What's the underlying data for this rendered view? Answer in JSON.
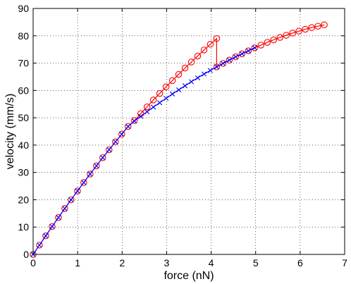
{
  "chart_data": {
    "type": "line",
    "xlabel": "force (nN)",
    "ylabel": "velocity (mm/s)",
    "xlim": [
      0,
      7
    ],
    "ylim": [
      0,
      90
    ],
    "x_ticks": [
      "0",
      "1",
      "2",
      "3",
      "4",
      "5",
      "6",
      "7"
    ],
    "y_ticks": [
      "0",
      "10",
      "20",
      "30",
      "40",
      "50",
      "60",
      "70",
      "80",
      "90"
    ],
    "grid": true,
    "grid_style": "dotted",
    "legend": "none",
    "series": [
      {
        "color": "#0000ff",
        "marker": "x",
        "x": [
          0.0,
          0.142,
          0.284,
          0.427,
          0.569,
          0.711,
          0.853,
          0.996,
          1.138,
          1.28,
          1.422,
          1.564,
          1.707,
          1.849,
          1.991,
          2.133,
          2.276,
          2.418,
          2.56,
          2.702,
          2.844,
          2.987,
          3.129,
          3.271,
          3.413,
          3.556,
          3.698,
          3.84,
          3.982,
          4.124,
          4.267,
          4.409,
          4.551,
          4.693,
          4.836,
          4.978
        ],
        "y": [
          0.0,
          3.4,
          6.8,
          10.2,
          13.5,
          16.8,
          20.0,
          23.2,
          26.3,
          29.4,
          32.4,
          35.4,
          38.3,
          41.2,
          44.0,
          46.8,
          48.8,
          50.5,
          52.2,
          53.9,
          55.5,
          57.1,
          58.7,
          60.2,
          61.7,
          63.2,
          64.6,
          66.0,
          67.3,
          68.6,
          69.9,
          71.1,
          72.3,
          73.4,
          74.5,
          75.6
        ]
      },
      {
        "color": "#ff0000",
        "marker": "o",
        "x": [
          0.0,
          0.142,
          0.284,
          0.427,
          0.569,
          0.711,
          0.853,
          0.996,
          1.138,
          1.28,
          1.422,
          1.564,
          1.707,
          1.849,
          1.991,
          2.133,
          2.276,
          2.418,
          2.56,
          2.702,
          2.844,
          2.987,
          3.129,
          3.271,
          3.413,
          3.556,
          3.698,
          3.84,
          3.982,
          4.124,
          4.124,
          4.267,
          4.409,
          4.551,
          4.693,
          4.836,
          4.978,
          5.12,
          5.262,
          5.404,
          5.547,
          5.689,
          5.831,
          5.973,
          6.116,
          6.258,
          6.4,
          6.542
        ],
        "y": [
          0.0,
          3.4,
          6.8,
          10.2,
          13.5,
          16.8,
          20.0,
          23.2,
          26.3,
          29.4,
          32.4,
          35.4,
          38.3,
          41.2,
          44.0,
          46.8,
          49.0,
          51.5,
          54.0,
          56.5,
          58.9,
          61.3,
          63.6,
          65.9,
          68.2,
          70.4,
          72.6,
          74.8,
          76.9,
          79.0,
          68.6,
          69.9,
          71.1,
          72.3,
          73.4,
          74.5,
          75.6,
          76.6,
          77.6,
          78.5,
          79.4,
          80.2,
          81.0,
          81.7,
          82.4,
          83.0,
          83.5,
          84.0
        ]
      }
    ]
  }
}
